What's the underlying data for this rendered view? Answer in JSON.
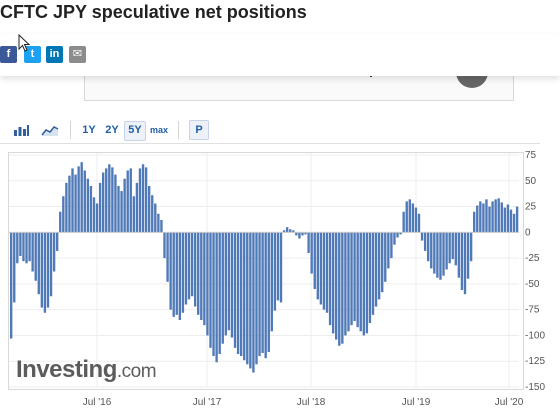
{
  "page": {
    "title": "CFTC JPY speculative net positions"
  },
  "share": {
    "facebook": "f",
    "twitter": "t",
    "linkedin": "in",
    "email": "✉",
    "colors": {
      "facebook": "#3b5998",
      "twitter": "#1da1f2",
      "linkedin": "#0077b5",
      "email": "#8c8c8c"
    }
  },
  "toolbar": {
    "bar_chart_icon": "bar-chart-icon",
    "area_chart_icon": "area-chart-icon",
    "ranges": [
      "1Y",
      "2Y",
      "5Y",
      "max"
    ],
    "active_range": "5Y",
    "p_button": "P"
  },
  "logo": {
    "main": "Investing",
    "suffix": ".com"
  },
  "chart_data": {
    "type": "bar",
    "title": "",
    "xlabel": "",
    "ylabel": "",
    "ylim": [
      -150,
      75
    ],
    "yticks": [
      75,
      50,
      25,
      0,
      -25,
      -50,
      -75,
      -100,
      -125,
      -150
    ],
    "x_labels": [
      "Jul '16",
      "Jul '17",
      "Jul '18",
      "Jul '19",
      "Jul '20"
    ],
    "bar_color": "#4f79b7",
    "values": [
      -103,
      -68,
      -30,
      -23,
      -28,
      -30,
      -28,
      -38,
      -47,
      -60,
      -73,
      -78,
      -73,
      -62,
      -38,
      -18,
      20,
      35,
      48,
      55,
      62,
      56,
      64,
      68,
      60,
      52,
      45,
      34,
      28,
      48,
      58,
      62,
      66,
      63,
      56,
      45,
      40,
      52,
      60,
      62,
      35,
      48,
      62,
      66,
      63,
      45,
      36,
      28,
      18,
      12,
      -25,
      -48,
      -75,
      -82,
      -80,
      -85,
      -78,
      -70,
      -65,
      -62,
      -72,
      -80,
      -85,
      -90,
      -100,
      -112,
      -120,
      -126,
      -118,
      -108,
      -100,
      -95,
      -102,
      -112,
      -118,
      -120,
      -124,
      -128,
      -132,
      -136,
      -128,
      -120,
      -117,
      -122,
      -116,
      -96,
      -76,
      -66,
      -68,
      2,
      5,
      3,
      2,
      -3,
      -6,
      -3,
      -2,
      -20,
      -40,
      -55,
      -65,
      -70,
      -75,
      -78,
      -90,
      -98,
      -104,
      -110,
      -108,
      -100,
      -96,
      -90,
      -86,
      -92,
      -96,
      -100,
      -98,
      -88,
      -80,
      -72,
      -65,
      -58,
      -48,
      -35,
      -25,
      -12,
      -5,
      -2,
      20,
      30,
      32,
      28,
      24,
      18,
      -8,
      -18,
      -28,
      -35,
      -40,
      -44,
      -46,
      -42,
      -36,
      -30,
      -26,
      -32,
      -44,
      -56,
      -60,
      -45,
      -28,
      20,
      26,
      30,
      28,
      32,
      25,
      30,
      32,
      33,
      29,
      24,
      27,
      22,
      18,
      25
    ]
  }
}
